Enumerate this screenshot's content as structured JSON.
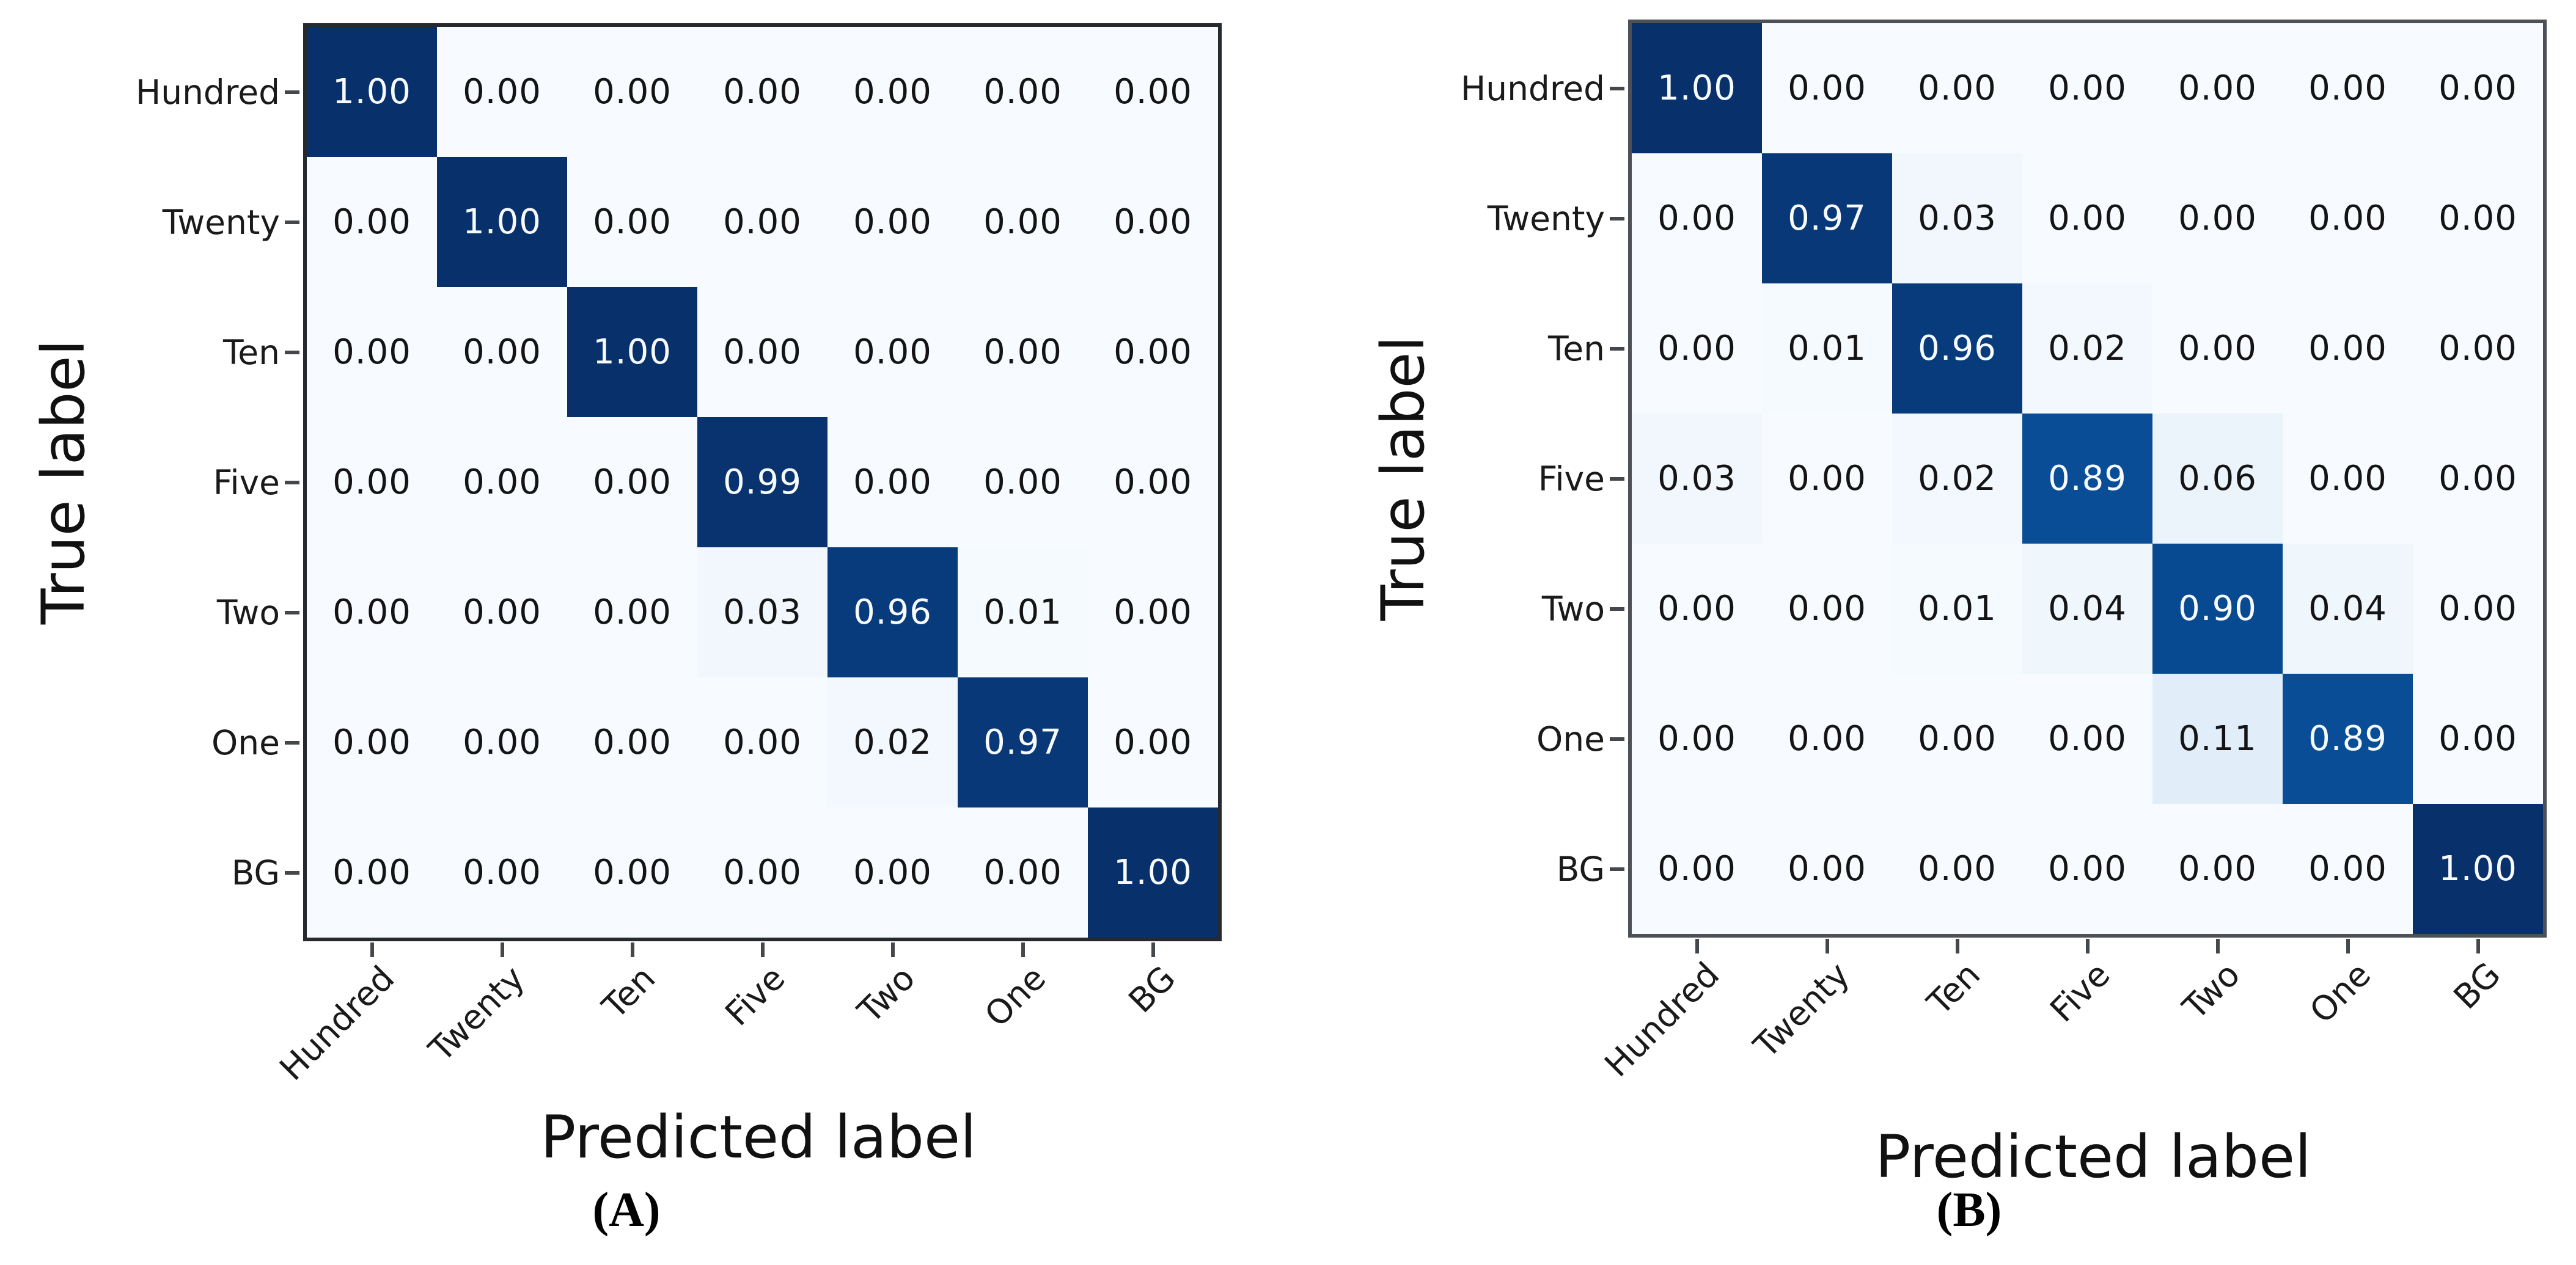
{
  "chart_data": [
    {
      "type": "heatmap",
      "panel": "A",
      "caption": "(A)",
      "title": "",
      "xlabel": "Predicted label",
      "ylabel": "True label",
      "row_labels": [
        "Hundred",
        "Twenty",
        "Ten",
        "Five",
        "Two",
        "One",
        "BG"
      ],
      "col_labels": [
        "Hundred",
        "Twenty",
        "Ten",
        "Five",
        "Two",
        "One",
        "BG"
      ],
      "cell_decimals": 2,
      "value_range": [
        0,
        1
      ],
      "colormap": "Blues",
      "grid": false,
      "legend": "none",
      "matrix": [
        [
          1.0,
          0.0,
          0.0,
          0.0,
          0.0,
          0.0,
          0.0
        ],
        [
          0.0,
          1.0,
          0.0,
          0.0,
          0.0,
          0.0,
          0.0
        ],
        [
          0.0,
          0.0,
          1.0,
          0.0,
          0.0,
          0.0,
          0.0
        ],
        [
          0.0,
          0.0,
          0.0,
          0.99,
          0.0,
          0.0,
          0.0
        ],
        [
          0.0,
          0.0,
          0.0,
          0.03,
          0.96,
          0.01,
          0.0
        ],
        [
          0.0,
          0.0,
          0.0,
          0.0,
          0.02,
          0.97,
          0.0
        ],
        [
          0.0,
          0.0,
          0.0,
          0.0,
          0.0,
          0.0,
          1.0
        ]
      ]
    },
    {
      "type": "heatmap",
      "panel": "B",
      "caption": "(B)",
      "title": "",
      "xlabel": "Predicted label",
      "ylabel": "True label",
      "row_labels": [
        "Hundred",
        "Twenty",
        "Ten",
        "Five",
        "Two",
        "One",
        "BG"
      ],
      "col_labels": [
        "Hundred",
        "Twenty",
        "Ten",
        "Five",
        "Two",
        "One",
        "BG"
      ],
      "cell_decimals": 2,
      "value_range": [
        0,
        1
      ],
      "colormap": "Blues",
      "grid": false,
      "legend": "none",
      "matrix": [
        [
          1.0,
          0.0,
          0.0,
          0.0,
          0.0,
          0.0,
          0.0
        ],
        [
          0.0,
          0.97,
          0.03,
          0.0,
          0.0,
          0.0,
          0.0
        ],
        [
          0.0,
          0.01,
          0.96,
          0.02,
          0.0,
          0.0,
          0.0
        ],
        [
          0.03,
          0.0,
          0.02,
          0.89,
          0.06,
          0.0,
          0.0
        ],
        [
          0.0,
          0.0,
          0.01,
          0.04,
          0.9,
          0.04,
          0.0
        ],
        [
          0.0,
          0.0,
          0.0,
          0.0,
          0.11,
          0.89,
          0.0
        ],
        [
          0.0,
          0.0,
          0.0,
          0.0,
          0.0,
          0.0,
          1.0
        ]
      ]
    }
  ],
  "colors": {
    "background": "#ffffff",
    "colormap_name": "Blues",
    "colormap_stops": [
      {
        "v": 0.0,
        "c": "#f7fbff"
      },
      {
        "v": 0.125,
        "c": "#deebf7"
      },
      {
        "v": 0.25,
        "c": "#c6dbef"
      },
      {
        "v": 0.375,
        "c": "#9ecae1"
      },
      {
        "v": 0.5,
        "c": "#6baed6"
      },
      {
        "v": 0.625,
        "c": "#4292c6"
      },
      {
        "v": 0.75,
        "c": "#2171b5"
      },
      {
        "v": 0.875,
        "c": "#08519c"
      },
      {
        "v": 1.0,
        "c": "#08306b"
      }
    ],
    "cell_text_light": "#f7fbff",
    "cell_text_dark": "#141414",
    "text_threshold": 0.5
  }
}
